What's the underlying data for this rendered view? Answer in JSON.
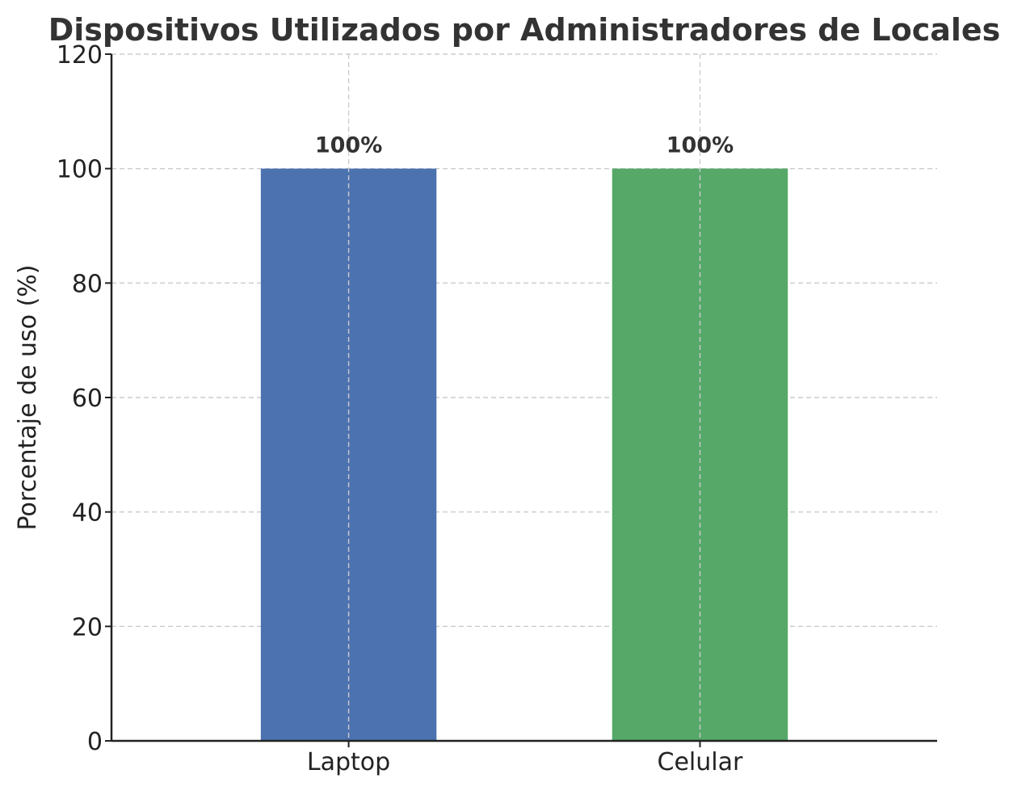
{
  "chart_data": {
    "type": "bar",
    "title": "Dispositivos Utilizados por Administradores de Locales",
    "xlabel": "",
    "ylabel": "Porcentaje de uso (%)",
    "categories": [
      "Laptop",
      "Celular"
    ],
    "values": [
      100,
      100
    ],
    "value_labels": [
      "100%",
      "100%"
    ],
    "bar_colors": [
      "#4c72b0",
      "#55a868"
    ],
    "ylim": [
      0,
      120
    ],
    "yticks": [
      0,
      20,
      40,
      60,
      80,
      100,
      120
    ],
    "grid": true
  }
}
